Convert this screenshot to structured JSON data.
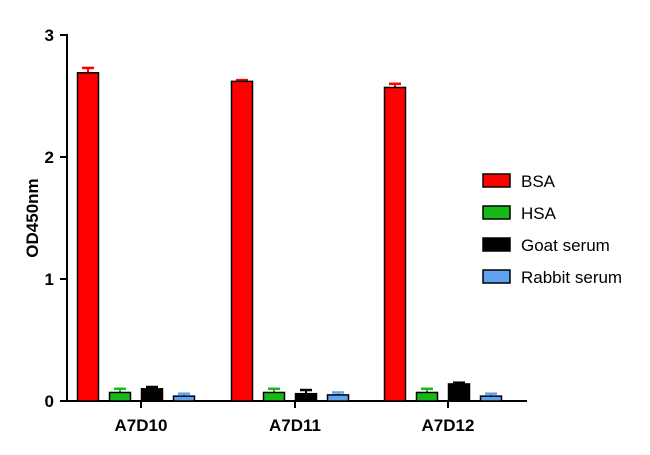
{
  "chart_data": {
    "type": "bar",
    "title": "",
    "xlabel": "",
    "ylabel": "OD450nm",
    "ylim": [
      0,
      3
    ],
    "yticks": [
      "0",
      "1",
      "2",
      "3"
    ],
    "grid": false,
    "legend_position": "right",
    "categories": [
      "A7D10",
      "A7D11",
      "A7D12"
    ],
    "series": [
      {
        "name": "BSA",
        "color": "#ff0000",
        "values": [
          2.69,
          2.62,
          2.57
        ],
        "errors": [
          0.04,
          0.01,
          0.03
        ]
      },
      {
        "name": "HSA",
        "color": "#17b817",
        "values": [
          0.07,
          0.07,
          0.07
        ],
        "errors": [
          0.03,
          0.03,
          0.03
        ]
      },
      {
        "name": "Goat serum",
        "color": "#000000",
        "values": [
          0.1,
          0.06,
          0.14
        ],
        "errors": [
          0.015,
          0.03,
          0.01
        ]
      },
      {
        "name": "Rabbit serum",
        "color": "#5fa3f0",
        "values": [
          0.04,
          0.05,
          0.04
        ],
        "errors": [
          0.02,
          0.02,
          0.02
        ]
      }
    ]
  }
}
